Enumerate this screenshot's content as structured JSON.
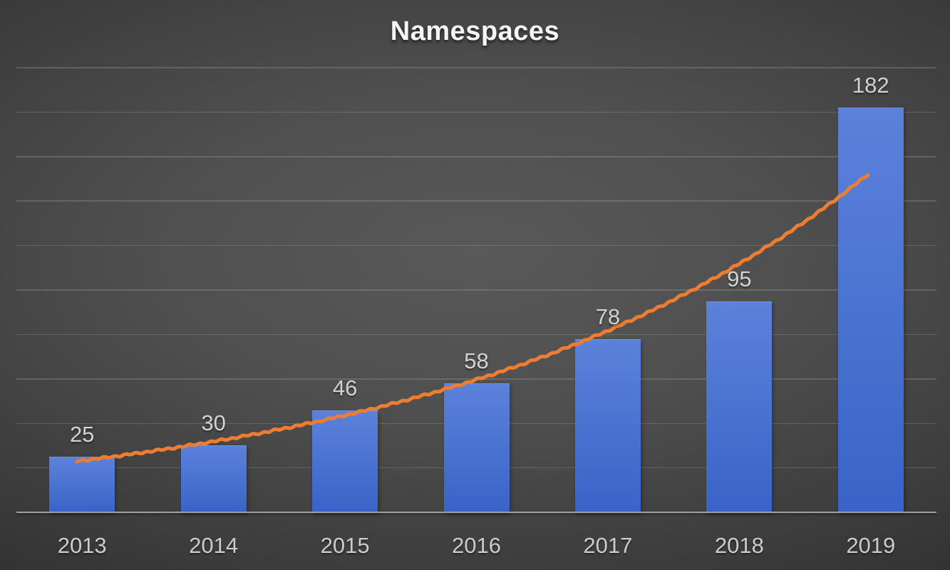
{
  "chart_data": {
    "type": "bar",
    "title": "Namespaces",
    "categories": [
      "2013",
      "2014",
      "2015",
      "2016",
      "2017",
      "2018",
      "2019"
    ],
    "values": [
      25,
      30,
      46,
      58,
      78,
      95,
      182
    ],
    "data_labels": [
      25,
      30,
      46,
      58,
      78,
      95,
      182
    ],
    "xlabel": "",
    "ylabel": "",
    "ylim": [
      0,
      200
    ],
    "gridline_step": 20,
    "y_axis_labels_shown": false,
    "grid": true,
    "legend_position": "none",
    "trendline": {
      "type": "exponential",
      "style": "sketchy",
      "start_value": 23,
      "end_value": 153
    }
  },
  "colors": {
    "bar_gradient_top": "#5b82da",
    "bar_gradient_bottom": "#3a63c8",
    "trendline_orange": "#ed7d31",
    "title_text": "#f5f5f5",
    "data_label_text": "#d2d2d2",
    "axis_label_text": "#cccccc",
    "axis_line": "#a0a0a0",
    "gridline": "rgba(165,165,165,0.30)",
    "background_center": "#585858",
    "background_edge": "#1f1f1f"
  }
}
